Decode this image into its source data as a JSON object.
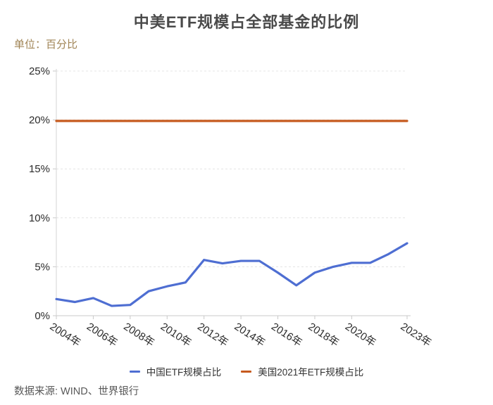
{
  "title": "中美ETF规模占全部基金的比例",
  "subtitle": "单位：百分比",
  "source": "数据来源: WIND、世界银行",
  "colors": {
    "china_line": "#4e6ed2",
    "us_line": "#c65a1e",
    "subtitle_text": "#a08455",
    "grid": "#e4e4e4",
    "axis": "#c9c9c9"
  },
  "chart_data": {
    "type": "line",
    "title": "中美ETF规模占全部基金的比例",
    "unit_label": "单位：百分比",
    "x": [
      2004,
      2005,
      2006,
      2007,
      2008,
      2009,
      2010,
      2011,
      2012,
      2013,
      2014,
      2015,
      2016,
      2017,
      2018,
      2019,
      2020,
      2021,
      2022,
      2023
    ],
    "x_ticks": [
      {
        "year": 2004,
        "label": "2004年"
      },
      {
        "year": 2006,
        "label": "2006年"
      },
      {
        "year": 2008,
        "label": "2008年"
      },
      {
        "year": 2010,
        "label": "2010年"
      },
      {
        "year": 2012,
        "label": "2012年"
      },
      {
        "year": 2014,
        "label": "2014年"
      },
      {
        "year": 2016,
        "label": "2016年"
      },
      {
        "year": 2018,
        "label": "2018年"
      },
      {
        "year": 2020,
        "label": "2020年"
      },
      {
        "year": 2023,
        "label": "2023年"
      }
    ],
    "series": [
      {
        "name": "中国ETF规模占比",
        "color": "#4e6ed2",
        "values": [
          1.7,
          1.4,
          1.8,
          1.0,
          1.1,
          2.5,
          3.0,
          3.4,
          5.7,
          5.35,
          5.6,
          5.6,
          4.4,
          3.1,
          4.4,
          5.0,
          5.4,
          5.4,
          6.3,
          7.4
        ]
      },
      {
        "name": "美国2021年ETF规模占比",
        "color": "#c65a1e",
        "values": [
          19.9,
          19.9,
          19.9,
          19.9,
          19.9,
          19.9,
          19.9,
          19.9,
          19.9,
          19.9,
          19.9,
          19.9,
          19.9,
          19.9,
          19.9,
          19.9,
          19.9,
          19.9,
          19.9,
          19.9
        ]
      }
    ],
    "ylim": [
      0,
      25
    ],
    "yticks": [
      {
        "value": 0,
        "label": "0%"
      },
      {
        "value": 5,
        "label": "5%"
      },
      {
        "value": 10,
        "label": "10%"
      },
      {
        "value": 15,
        "label": "15%"
      },
      {
        "value": 20,
        "label": "20%"
      },
      {
        "value": 25,
        "label": "25%"
      }
    ],
    "grid": "horizontal-dashed",
    "legend_position": "bottom-center"
  }
}
